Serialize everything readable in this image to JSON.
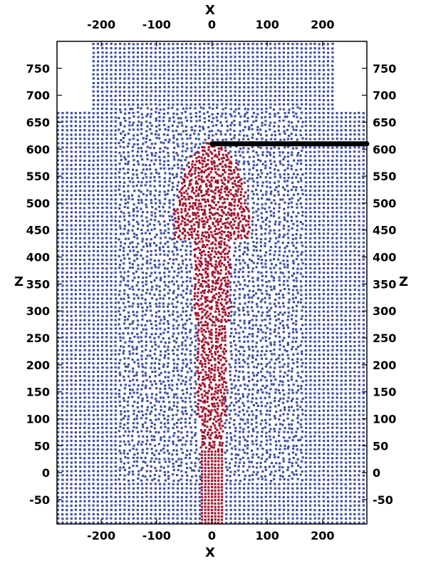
{
  "chart_data": {
    "type": "scatter",
    "title": "",
    "xlabel": "X",
    "ylabel": "Z",
    "xlim": [
      -280,
      280
    ],
    "ylim": [
      -95,
      800
    ],
    "x_ticks": [
      -200,
      -100,
      0,
      100,
      200
    ],
    "x_tick_labels": [
      "-200",
      "-100",
      "0",
      "100",
      "200"
    ],
    "y_ticks": [
      -50,
      0,
      50,
      100,
      150,
      200,
      250,
      300,
      350,
      400,
      450,
      500,
      550,
      600,
      650,
      700,
      750
    ],
    "y_tick_labels": [
      "-50",
      "0",
      "50",
      "100",
      "150",
      "200",
      "250",
      "300",
      "350",
      "400",
      "450",
      "500",
      "550",
      "600",
      "650",
      "700",
      "750"
    ],
    "grid": false,
    "legend": "none",
    "colors": {
      "blue_particles": "#3f4f9f",
      "red_particles": "#a01530",
      "thick_line": "#000000"
    },
    "series": [
      {
        "color_key": "blue_particles",
        "regions": [
          {
            "x": [
              -280,
              280
            ],
            "z": [
              -95,
              668
            ]
          },
          {
            "x": [
              -220,
              220
            ],
            "z": [
              668,
              800
            ]
          }
        ],
        "grid_spacing": 8
      },
      {
        "color_key": "red_particles",
        "regions": [
          {
            "shape": "stem",
            "x": [
              -18,
              18
            ],
            "z": [
              -95,
              40
            ]
          },
          {
            "shape": "column",
            "x_center": 0,
            "z": [
              40,
              430
            ],
            "half_width_bottom": 22,
            "half_width_top": 35
          },
          {
            "shape": "cap",
            "x_center": 0,
            "z": [
              430,
              612
            ],
            "half_width": 70
          }
        ]
      }
    ],
    "line": {
      "color_key": "thick_line",
      "x": [
        0,
        280
      ],
      "z": [
        610,
        610
      ]
    }
  }
}
